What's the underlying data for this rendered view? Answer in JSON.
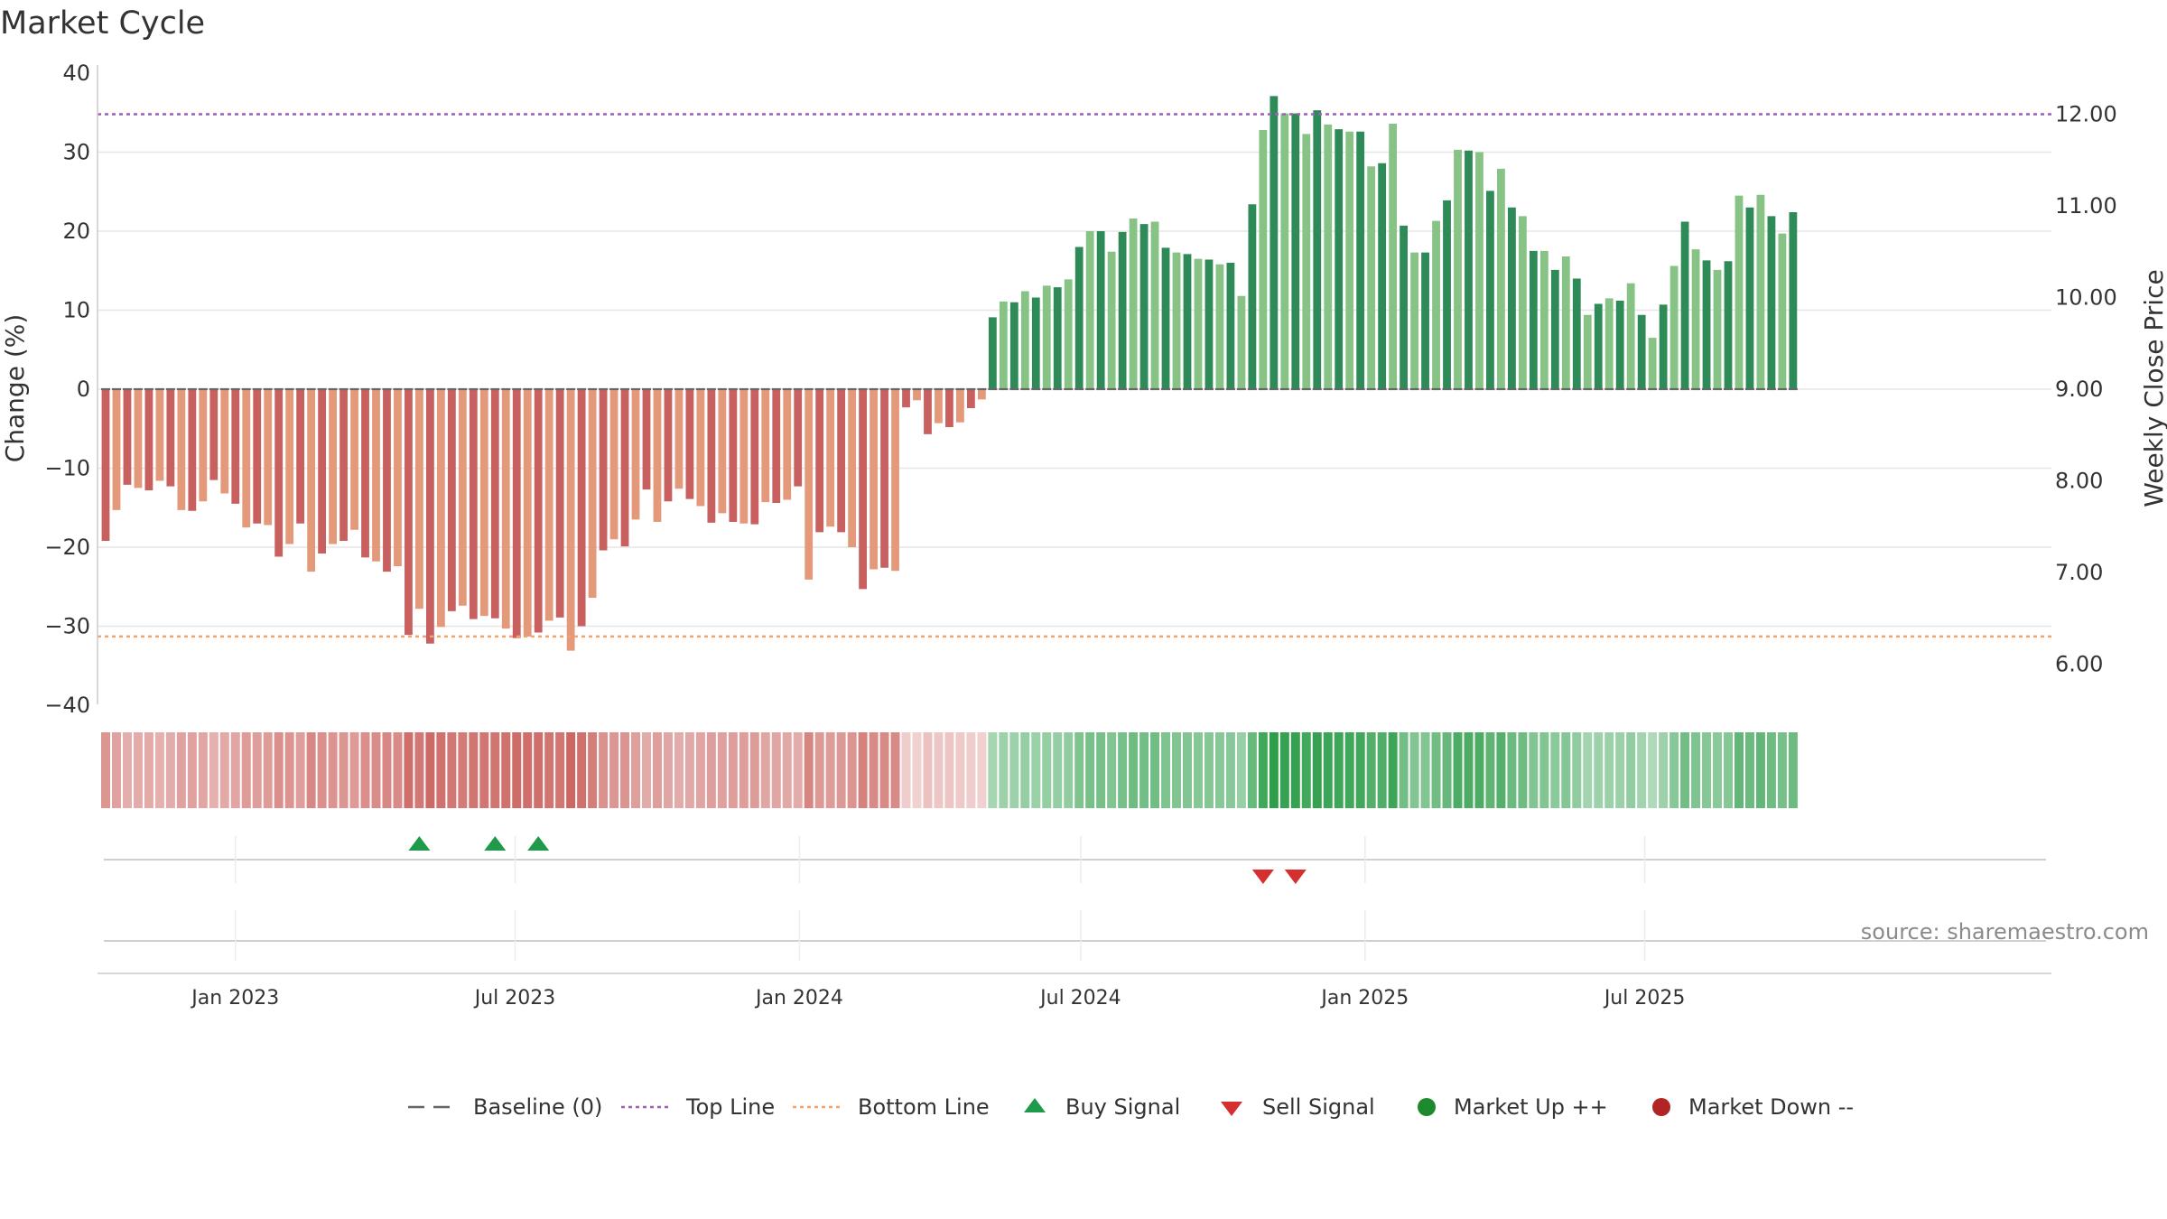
{
  "title": "Market Cycle",
  "source": "source: sharemaestro.com",
  "chart_data": {
    "type": "bar",
    "title": "Market Cycle",
    "x_start": "2022-10-09",
    "x_step_days": 7,
    "date_ticks": [
      {
        "date": "2023-01-01",
        "label": "Jan 2023"
      },
      {
        "date": "2023-07-01",
        "label": "Jul 2023"
      },
      {
        "date": "2024-01-01",
        "label": "Jan 2024"
      },
      {
        "date": "2024-07-01",
        "label": "Jul 2024"
      },
      {
        "date": "2025-01-01",
        "label": "Jan 2025"
      },
      {
        "date": "2025-07-01",
        "label": "Jul 2025"
      }
    ],
    "left_axis": {
      "label": "Change (%)",
      "ylim": [
        -40,
        40
      ],
      "ticks": [
        40,
        30,
        20,
        10,
        0,
        -10,
        -20,
        -30,
        -40
      ],
      "tick_labels": [
        "40",
        "30",
        "20",
        "10",
        "0",
        "−10",
        "−20",
        "−30",
        "−40"
      ]
    },
    "right_axis": {
      "label": "Weekly Close Price",
      "ylim": [
        5.5,
        12.5
      ],
      "ticks": [
        12.0,
        11.0,
        10.0,
        9.0,
        8.0,
        7.0,
        6.0
      ],
      "tick_labels": [
        "12.00",
        "11.00",
        "10.00",
        "9.00",
        "8.00",
        "7.00",
        "6.00"
      ]
    },
    "top_line": 34.8,
    "bottom_line": -31.3,
    "values": [
      -19.2,
      -15.3,
      -12.1,
      -12.5,
      -12.8,
      -11.6,
      -12.3,
      -15.3,
      -15.4,
      -14.2,
      -11.5,
      -13.2,
      -14.5,
      -17.5,
      -17.0,
      -17.2,
      -21.2,
      -19.6,
      -17.0,
      -23.1,
      -20.8,
      -19.6,
      -19.2,
      -17.8,
      -21.3,
      -21.8,
      -23.1,
      -22.4,
      -31.1,
      -27.8,
      -32.2,
      -30.1,
      -28.1,
      -27.4,
      -29.1,
      -28.7,
      -29.0,
      -30.3,
      -31.5,
      -31.3,
      -30.8,
      -29.3,
      -28.9,
      -33.1,
      -30.0,
      -26.4,
      -20.4,
      -19.0,
      -19.9,
      -16.5,
      -12.7,
      -16.8,
      -14.2,
      -12.6,
      -13.9,
      -14.8,
      -16.9,
      -15.7,
      -16.8,
      -17.0,
      -17.1,
      -14.3,
      -14.4,
      -14.0,
      -12.3,
      -24.1,
      -18.1,
      -17.4,
      -18.1,
      -20.0,
      -25.3,
      -22.8,
      -22.6,
      -23.0,
      -2.3,
      -1.4,
      -5.7,
      -4.3,
      -4.8,
      -4.2,
      -2.4,
      -1.3,
      9.1,
      11.1,
      11.0,
      12.4,
      11.6,
      13.1,
      12.9,
      13.9,
      18.0,
      20.0,
      20.0,
      17.4,
      19.9,
      21.6,
      20.9,
      21.2,
      17.9,
      17.3,
      17.1,
      16.5,
      16.4,
      15.8,
      16.0,
      11.8,
      23.4,
      32.8,
      37.1,
      34.9,
      34.9,
      32.3,
      35.3,
      33.5,
      32.9,
      32.6,
      32.6,
      28.2,
      28.6,
      33.6,
      20.7,
      17.3,
      17.3,
      21.3,
      23.9,
      30.3,
      30.2,
      30.0,
      25.1,
      27.9,
      23.0,
      21.9,
      17.5,
      17.5,
      15.1,
      16.8,
      14.0,
      9.4,
      10.8,
      11.5,
      11.2,
      13.4,
      9.4,
      6.5,
      10.7,
      15.6,
      21.2,
      17.7,
      16.3,
      15.1,
      16.2,
      24.5,
      23.0,
      24.6,
      21.9,
      19.7,
      22.4
    ],
    "buy_signals": [
      "2023-04-30",
      "2023-06-18",
      "2023-07-16"
    ],
    "sell_signals": [
      "2024-10-27",
      "2024-11-17"
    ],
    "legend": [
      {
        "key": "baseline",
        "label": "Baseline (0)"
      },
      {
        "key": "top",
        "label": "Top Line"
      },
      {
        "key": "bottom",
        "label": "Bottom Line"
      },
      {
        "key": "buy",
        "label": "Buy Signal"
      },
      {
        "key": "sell",
        "label": "Sell Signal"
      },
      {
        "key": "mup",
        "label": "Market Up ++"
      },
      {
        "key": "mdown",
        "label": "Market Down --"
      }
    ],
    "legend_placement": "bottom",
    "grid": true,
    "colors": {
      "neg_dark": "#c96060",
      "neg_light": "#e49a7a",
      "pos_dark": "#2e8a57",
      "pos_light": "#86c385",
      "top_line": "#9a62b0",
      "bottom_line": "#f3a46a",
      "baseline": "#666666",
      "buy": "#1f9a4b",
      "sell": "#d62f2f",
      "market_up": "#1e8a2e",
      "market_down": "#b22424"
    }
  }
}
